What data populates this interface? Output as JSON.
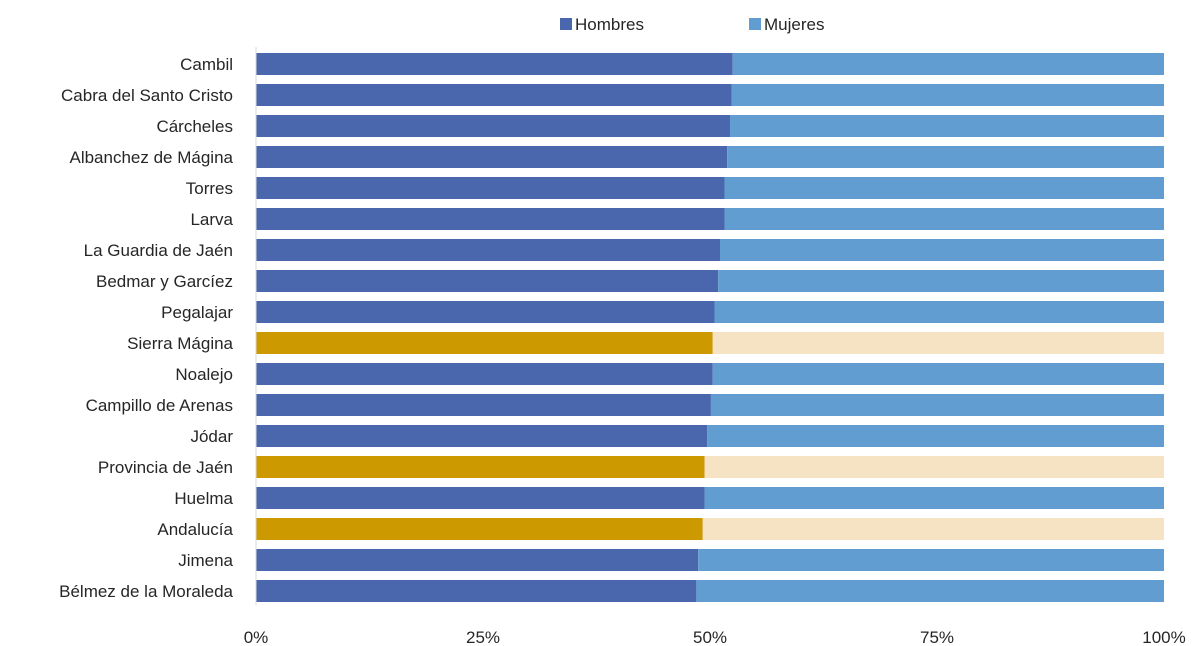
{
  "chart_data": {
    "type": "bar",
    "orientation": "horizontal",
    "stacked": "percent",
    "title": "",
    "xlabel": "",
    "ylabel": "",
    "xlim": [
      0,
      100
    ],
    "x_ticks": [
      "0%",
      "25%",
      "50%",
      "75%",
      "100%"
    ],
    "grid": false,
    "legend_position": "top",
    "categories": [
      "Cambil",
      "Cabra del Santo Cristo",
      "Cárcheles",
      "Albanchez de Mágina",
      "Torres",
      "Larva",
      "La Guardia de Jaén",
      "Bedmar y Garcíez",
      "Pegalajar",
      "Sierra Mágina",
      "Noalejo",
      "Campillo de Arenas",
      "Jódar",
      "Provincia de Jaén",
      "Huelma",
      "Andalucía",
      "Jimena",
      "Bélmez de la Moraleda"
    ],
    "highlighted_categories": [
      "Sierra Mágina",
      "Provincia de Jaén",
      "Andalucía"
    ],
    "series": [
      {
        "name": "Hombres",
        "color": "#4A66AC",
        "highlight_color": "#CC9900",
        "values": [
          52.5,
          52.4,
          52.2,
          51.9,
          51.6,
          51.6,
          51.1,
          50.9,
          50.5,
          50.3,
          50.3,
          50.1,
          49.7,
          49.4,
          49.4,
          49.2,
          48.7,
          48.5
        ]
      },
      {
        "name": "Mujeres",
        "color": "#629DD1",
        "highlight_color": "#F5E3C3",
        "values": [
          47.5,
          47.6,
          47.8,
          48.1,
          48.4,
          48.4,
          48.9,
          49.1,
          49.5,
          49.7,
          49.7,
          49.9,
          50.3,
          50.6,
          50.6,
          50.8,
          51.3,
          51.5
        ]
      }
    ]
  }
}
